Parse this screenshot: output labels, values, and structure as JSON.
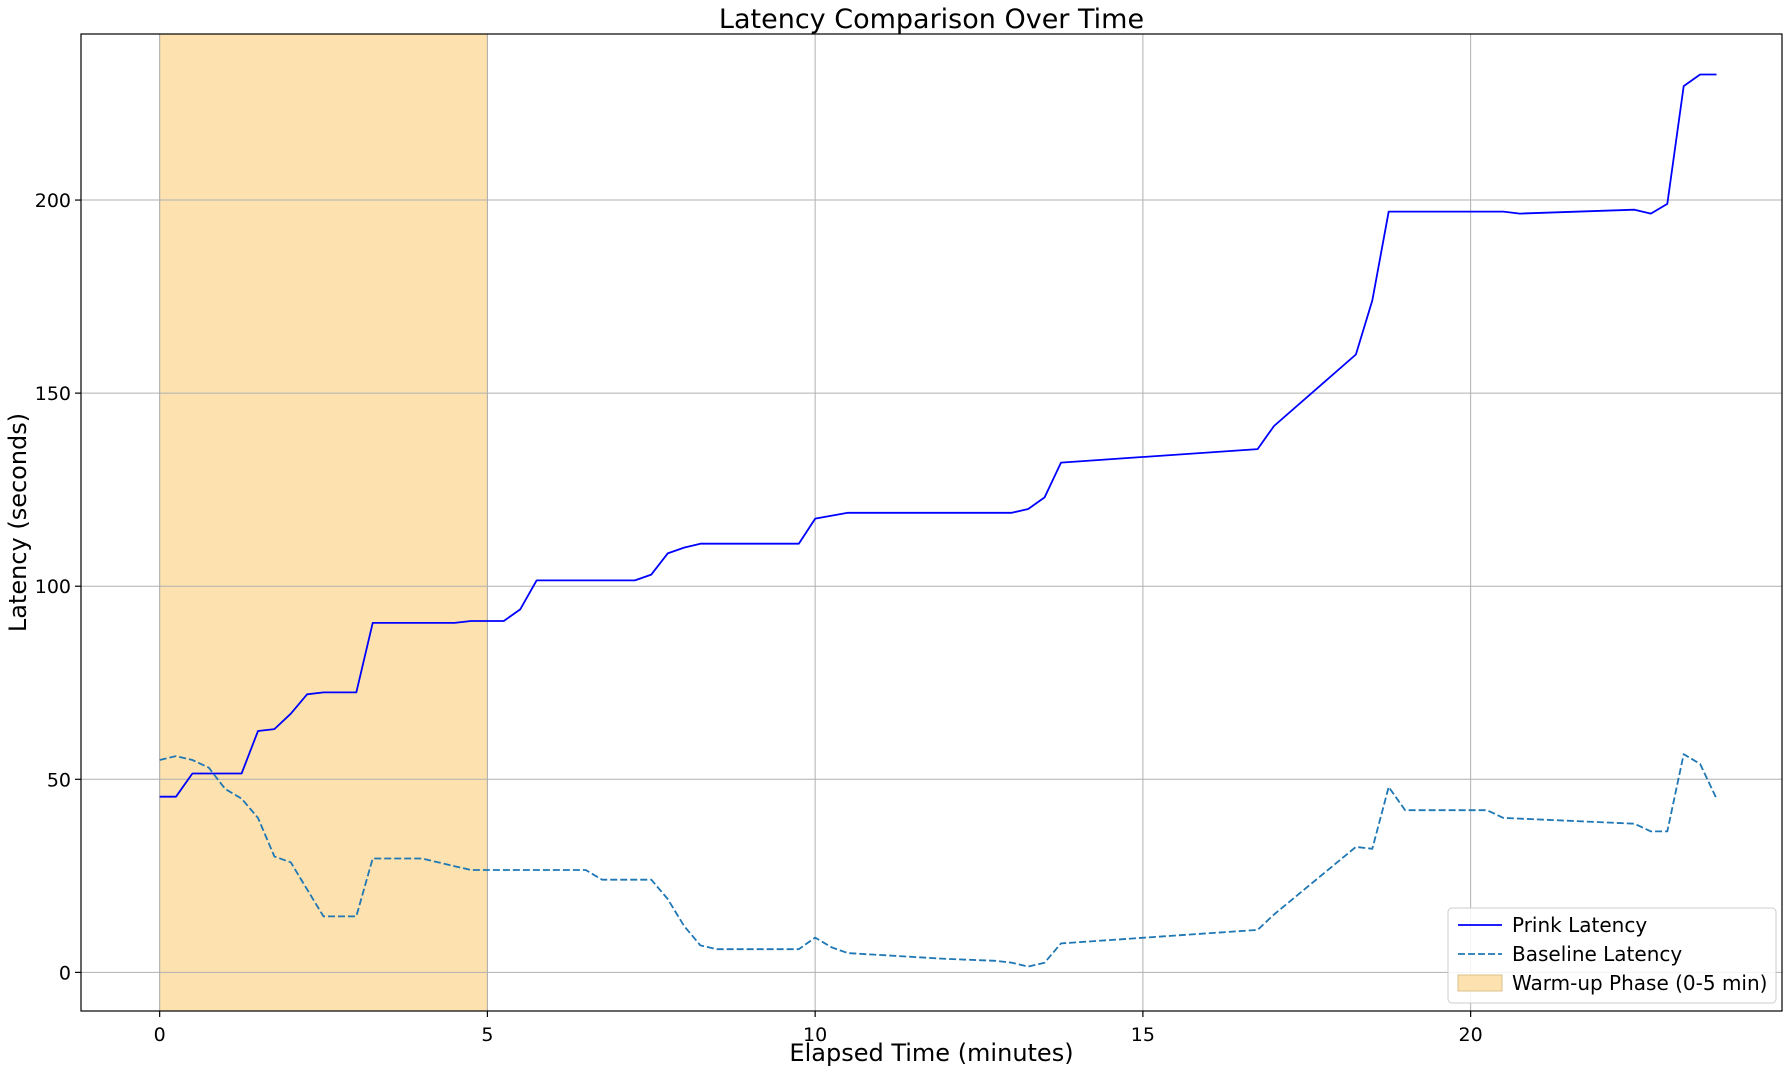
{
  "chart_data": {
    "type": "line",
    "title": "Latency Comparison Over Time",
    "xlabel": "Elapsed Time (minutes)",
    "ylabel": "Latency (seconds)",
    "xlim": [
      -1.2,
      24.75
    ],
    "ylim": [
      -10,
      243
    ],
    "xticks": [
      0,
      5,
      10,
      15,
      20
    ],
    "yticks": [
      0,
      50,
      100,
      150,
      200
    ],
    "grid": true,
    "legend_position": "lower right",
    "span": {
      "name": "Warm-up Phase (0-5 min)",
      "x0": 0,
      "x1": 5,
      "color": "#fde2b0"
    },
    "series": [
      {
        "name": "Prink Latency",
        "color": "#0000ff",
        "style": "solid",
        "points": [
          [
            0,
            45.5
          ],
          [
            0.25,
            45.5
          ],
          [
            0.5,
            51.5
          ],
          [
            0.75,
            51.5
          ],
          [
            1.0,
            51.5
          ],
          [
            1.25,
            51.5
          ],
          [
            1.5,
            62.5
          ],
          [
            1.75,
            63.0
          ],
          [
            2.0,
            67.0
          ],
          [
            2.25,
            72.0
          ],
          [
            2.5,
            72.5
          ],
          [
            2.75,
            72.5
          ],
          [
            3.0,
            72.5
          ],
          [
            3.25,
            90.5
          ],
          [
            3.5,
            90.5
          ],
          [
            4.0,
            90.5
          ],
          [
            4.5,
            90.5
          ],
          [
            4.75,
            91.0
          ],
          [
            5.0,
            91.0
          ],
          [
            5.25,
            91.0
          ],
          [
            5.5,
            94.0
          ],
          [
            5.75,
            101.5
          ],
          [
            6.0,
            101.5
          ],
          [
            6.5,
            101.5
          ],
          [
            7.0,
            101.5
          ],
          [
            7.25,
            101.5
          ],
          [
            7.5,
            103.0
          ],
          [
            7.75,
            108.5
          ],
          [
            8.0,
            110.0
          ],
          [
            8.25,
            111.0
          ],
          [
            8.5,
            111.0
          ],
          [
            9.0,
            111.0
          ],
          [
            9.5,
            111.0
          ],
          [
            9.75,
            111.0
          ],
          [
            10.0,
            117.5
          ],
          [
            10.5,
            119.0
          ],
          [
            11.0,
            119.0
          ],
          [
            12.0,
            119.0
          ],
          [
            13.0,
            119.0
          ],
          [
            13.25,
            120.0
          ],
          [
            13.5,
            123.0
          ],
          [
            13.75,
            132.0
          ],
          [
            16.75,
            135.5
          ],
          [
            17.0,
            141.5
          ],
          [
            18.25,
            160.0
          ],
          [
            18.5,
            174.0
          ],
          [
            18.75,
            197.0
          ],
          [
            19.0,
            197.0
          ],
          [
            20.0,
            197.0
          ],
          [
            20.5,
            197.0
          ],
          [
            20.75,
            196.5
          ],
          [
            22.5,
            197.5
          ],
          [
            22.75,
            196.5
          ],
          [
            23.0,
            199.0
          ],
          [
            23.25,
            229.5
          ],
          [
            23.5,
            232.5
          ],
          [
            23.75,
            232.5
          ]
        ]
      },
      {
        "name": "Baseline Latency",
        "color": "#1f77b4",
        "style": "dashed",
        "points": [
          [
            0,
            55.0
          ],
          [
            0.25,
            56.0
          ],
          [
            0.5,
            55.0
          ],
          [
            0.75,
            53.0
          ],
          [
            1.0,
            47.5
          ],
          [
            1.25,
            45.0
          ],
          [
            1.5,
            40.0
          ],
          [
            1.75,
            30.0
          ],
          [
            2.0,
            28.5
          ],
          [
            2.25,
            21.5
          ],
          [
            2.5,
            14.5
          ],
          [
            2.75,
            14.5
          ],
          [
            3.0,
            14.5
          ],
          [
            3.25,
            29.5
          ],
          [
            3.5,
            29.5
          ],
          [
            4.0,
            29.5
          ],
          [
            4.5,
            27.5
          ],
          [
            4.75,
            26.5
          ],
          [
            5.0,
            26.5
          ],
          [
            5.5,
            26.5
          ],
          [
            6.0,
            26.5
          ],
          [
            6.5,
            26.5
          ],
          [
            6.75,
            24.0
          ],
          [
            7.0,
            24.0
          ],
          [
            7.5,
            24.0
          ],
          [
            7.75,
            19.0
          ],
          [
            8.0,
            12.0
          ],
          [
            8.25,
            7.0
          ],
          [
            8.5,
            6.0
          ],
          [
            9.0,
            6.0
          ],
          [
            9.5,
            6.0
          ],
          [
            9.75,
            6.0
          ],
          [
            10.0,
            9.0
          ],
          [
            10.25,
            6.5
          ],
          [
            10.5,
            5.0
          ],
          [
            11.0,
            4.5
          ],
          [
            12.0,
            3.5
          ],
          [
            12.75,
            3.0
          ],
          [
            13.0,
            2.5
          ],
          [
            13.25,
            1.5
          ],
          [
            13.5,
            2.5
          ],
          [
            13.75,
            7.5
          ],
          [
            16.75,
            11.0
          ],
          [
            17.0,
            15.0
          ],
          [
            18.25,
            32.5
          ],
          [
            18.5,
            32.0
          ],
          [
            18.75,
            48.0
          ],
          [
            19.0,
            42.0
          ],
          [
            20.0,
            42.0
          ],
          [
            20.25,
            42.0
          ],
          [
            20.5,
            40.0
          ],
          [
            22.5,
            38.5
          ],
          [
            22.75,
            36.5
          ],
          [
            23.0,
            36.5
          ],
          [
            23.25,
            56.5
          ],
          [
            23.5,
            54.0
          ],
          [
            23.75,
            45.0
          ]
        ]
      }
    ]
  }
}
